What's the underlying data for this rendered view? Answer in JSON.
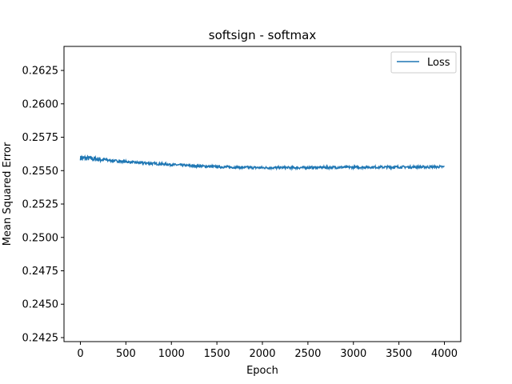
{
  "chart_data": {
    "type": "line",
    "title": "softsign - softmax",
    "xlabel": "Epoch",
    "ylabel": "Mean Squared Error",
    "xlim": [
      -180,
      4180
    ],
    "ylim": [
      0.2422,
      0.2643
    ],
    "x_ticks": [
      0,
      500,
      1000,
      1500,
      2000,
      2500,
      3000,
      3500,
      4000
    ],
    "y_ticks": [
      0.2425,
      0.245,
      0.2475,
      0.25,
      0.2525,
      0.255,
      0.2575,
      0.26,
      0.2625
    ],
    "x_tick_labels": [
      "0",
      "500",
      "1000",
      "1500",
      "2000",
      "2500",
      "3000",
      "3500",
      "4000"
    ],
    "y_tick_labels": [
      "0.2425",
      "0.2450",
      "0.2475",
      "0.2500",
      "0.2525",
      "0.2550",
      "0.2575",
      "0.2600",
      "0.2625"
    ],
    "grid": false,
    "legend_position": "top-right",
    "series": [
      {
        "name": "Loss",
        "color": "#1f77b4",
        "x": [
          0,
          100,
          200,
          300,
          400,
          500,
          600,
          700,
          800,
          900,
          1000,
          1100,
          1200,
          1300,
          1400,
          1500,
          1600,
          1700,
          1800,
          1900,
          2000,
          2100,
          2200,
          2300,
          2400,
          2500,
          2600,
          2700,
          2800,
          2900,
          3000,
          3100,
          3200,
          3300,
          3400,
          3500,
          3600,
          3700,
          3800,
          3900,
          4000
        ],
        "values": [
          0.25595,
          0.25592,
          0.25585,
          0.25578,
          0.25572,
          0.25566,
          0.25561,
          0.25557,
          0.25553,
          0.25549,
          0.25545,
          0.25541,
          0.25537,
          0.25534,
          0.25531,
          0.25529,
          0.25527,
          0.25525,
          0.25524,
          0.25523,
          0.25522,
          0.25522,
          0.25522,
          0.25522,
          0.25522,
          0.25523,
          0.25523,
          0.25524,
          0.25524,
          0.25525,
          0.25525,
          0.25525,
          0.25526,
          0.25526,
          0.25526,
          0.25527,
          0.25527,
          0.25527,
          0.25527,
          0.25528,
          0.25528
        ]
      }
    ]
  }
}
